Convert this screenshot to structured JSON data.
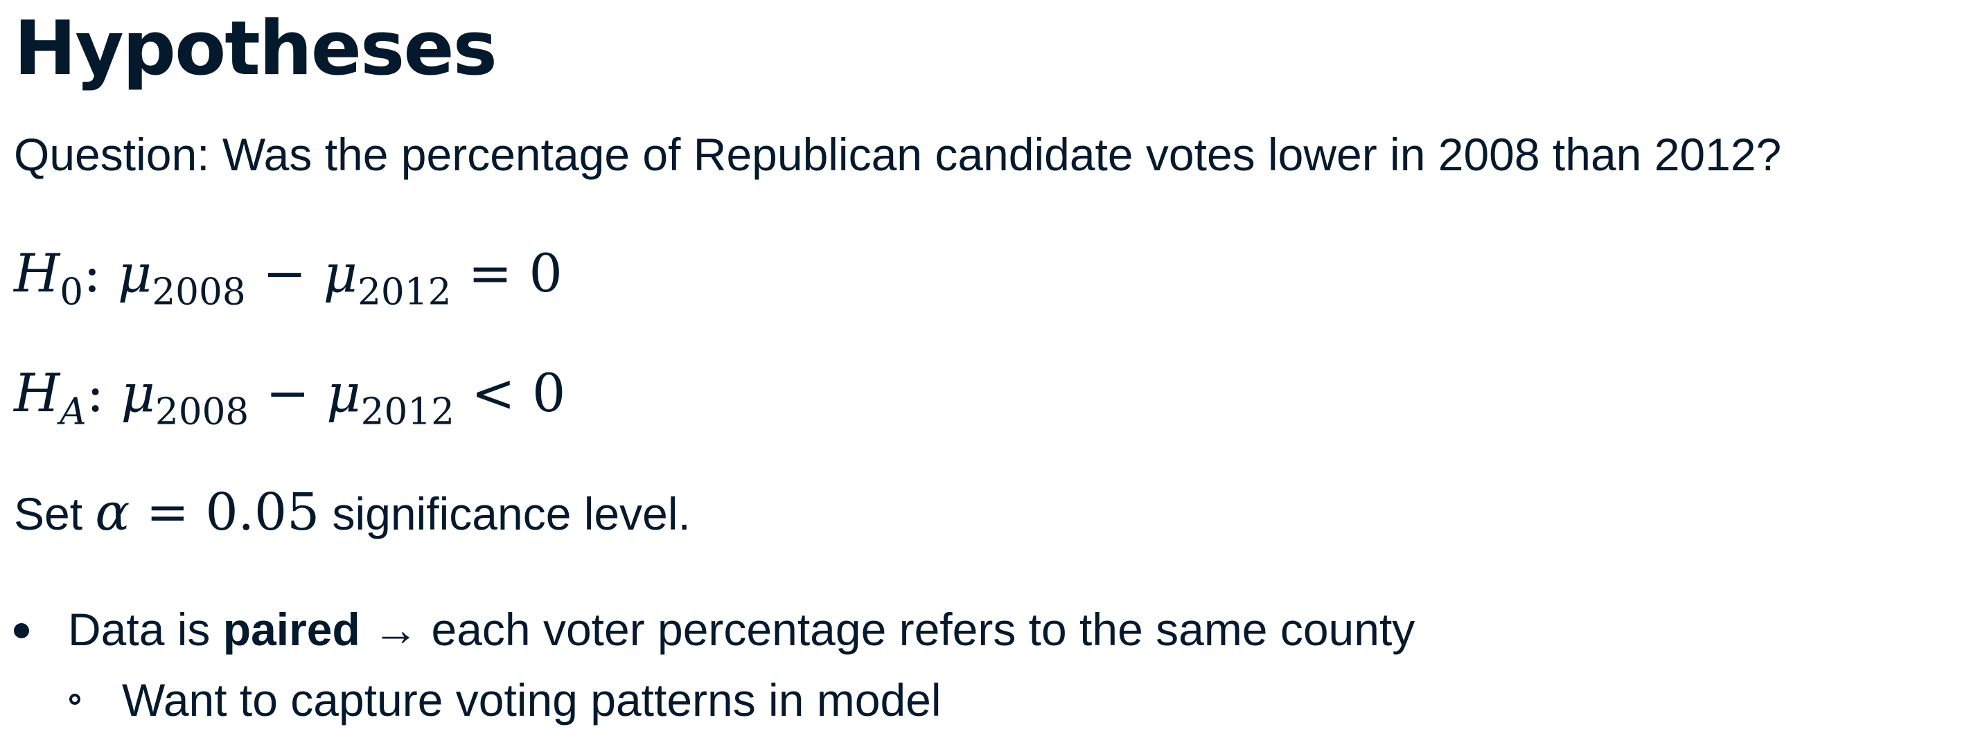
{
  "slide": {
    "title": "Hypotheses",
    "question": "Question: Was the percentage of Republican candidate votes lower in 2008 than 2012?",
    "null_hypothesis": {
      "symbol": "H",
      "subscript": "0",
      "colon": ":",
      "mu": "μ",
      "sub1": "2008",
      "minus": " − ",
      "sub2": "2012",
      "relation": " = ",
      "value": "0"
    },
    "alt_hypothesis": {
      "symbol": "H",
      "subscript": "A",
      "colon": ":",
      "mu": "μ",
      "sub1": "2008",
      "minus": " − ",
      "sub2": "2012",
      "relation": " < ",
      "value": "0"
    },
    "alpha_line": {
      "prefix": "Set ",
      "alpha_symbol": "α",
      "equals": " = ",
      "alpha_value": "0.05",
      "suffix": " significance level."
    },
    "bullets": [
      {
        "before": "Data is ",
        "bold": "paired",
        "after": " → each voter percentage refers to the same county"
      }
    ],
    "sub_bullets": [
      {
        "text": "Want to capture voting patterns in model"
      }
    ]
  },
  "colors": {
    "text": "#05192d",
    "background": "#ffffff"
  }
}
